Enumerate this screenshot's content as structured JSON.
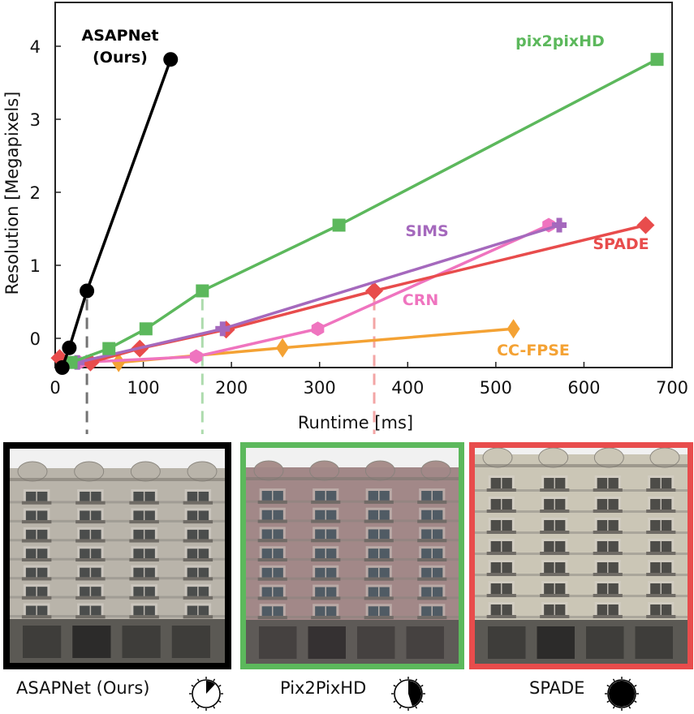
{
  "chart_data": {
    "type": "line",
    "xlabel": "Runtime [ms]",
    "ylabel": "Resolution [Megapixels]",
    "xlim": [
      0,
      700
    ],
    "ylim": [
      -0.4,
      4.6
    ],
    "xticks": [
      0,
      100,
      200,
      300,
      400,
      500,
      600,
      700
    ],
    "yticks": [
      0,
      1,
      2,
      3,
      4
    ],
    "grid": false,
    "series": [
      {
        "name": "ASAPNet\n(Ours)",
        "color": "#000000",
        "marker": "circle",
        "x": [
          8,
          16,
          36,
          131
        ],
        "y": [
          -0.4,
          -0.13,
          0.65,
          3.82
        ]
      },
      {
        "name": "pix2pixHD",
        "color": "#5cb85c",
        "marker": "square",
        "x": [
          18,
          61,
          103,
          167,
          322,
          683
        ],
        "y": [
          -0.33,
          -0.14,
          0.13,
          0.65,
          1.55,
          3.82
        ]
      },
      {
        "name": "SIMS",
        "color": "#a569bd",
        "marker": "plus",
        "x": [
          25,
          190,
          572
        ],
        "y": [
          -0.33,
          0.13,
          1.55
        ]
      },
      {
        "name": "SPADE",
        "color": "#e84c4c",
        "marker": "diamond",
        "x": [
          5,
          40,
          96,
          194,
          362,
          670
        ],
        "y": [
          -0.27,
          -0.33,
          -0.14,
          0.12,
          0.65,
          1.55
        ]
      },
      {
        "name": "CRN",
        "color": "#ef74bf",
        "marker": "hexagon",
        "x": [
          27,
          160,
          298,
          560
        ],
        "y": [
          -0.33,
          -0.25,
          0.13,
          1.55
        ]
      },
      {
        "name": "CC-FPSE",
        "color": "#f4a234",
        "marker": "thin-diamond",
        "x": [
          72,
          258,
          520
        ],
        "y": [
          -0.33,
          -0.13,
          0.13
        ]
      }
    ],
    "annotations": [
      {
        "series": "ASAPNet\n(Ours)",
        "x": 36,
        "y": 0.65,
        "panel": 0
      },
      {
        "series": "pix2pixHD",
        "x": 167,
        "y": 0.65,
        "panel": 1
      },
      {
        "series": "SPADE",
        "x": 362,
        "y": 0.65,
        "panel": 2
      }
    ]
  },
  "panels": [
    {
      "caption": "ASAPNet (Ours)",
      "border_color": "#000000",
      "wall": "#b9b4aa",
      "window": "#4b4d4c",
      "clock_fill": 0.12
    },
    {
      "caption": "Pix2PixHD",
      "border_color": "#5cb85c",
      "wall": "#a88e8b",
      "window": "#4a5a62",
      "clock_fill": 0.45
    },
    {
      "caption": "SPADE",
      "border_color": "#e84c4c",
      "wall": "#cbc6b6",
      "window": "#4d4c48",
      "clock_fill": 1.0
    }
  ]
}
